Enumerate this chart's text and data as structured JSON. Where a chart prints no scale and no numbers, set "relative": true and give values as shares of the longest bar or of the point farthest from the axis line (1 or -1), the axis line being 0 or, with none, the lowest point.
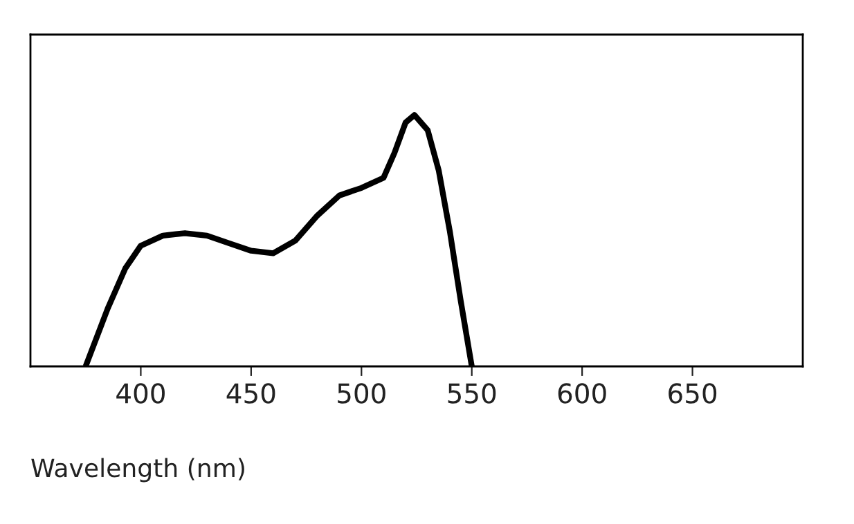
{
  "chart_data": {
    "type": "line",
    "xlabel": "Wavelength (nm)",
    "relative": true,
    "xlim": [
      350,
      700
    ],
    "xticks": [
      400,
      450,
      500,
      550,
      600,
      650
    ],
    "tick_labels": "x",
    "grid": false,
    "series": [
      {
        "color": "#000000",
        "x": [
          375,
          385,
          393,
          400,
          410,
          420,
          430,
          440,
          450,
          460,
          470,
          480,
          490,
          500,
          510,
          515,
          520,
          524,
          530,
          535,
          540,
          545,
          550
        ],
        "values": [
          0,
          0.23,
          0.39,
          0.48,
          0.52,
          0.53,
          0.52,
          0.49,
          0.46,
          0.45,
          0.5,
          0.6,
          0.68,
          0.71,
          0.75,
          0.85,
          0.97,
          1.0,
          0.94,
          0.78,
          0.54,
          0.26,
          0
        ]
      }
    ]
  }
}
